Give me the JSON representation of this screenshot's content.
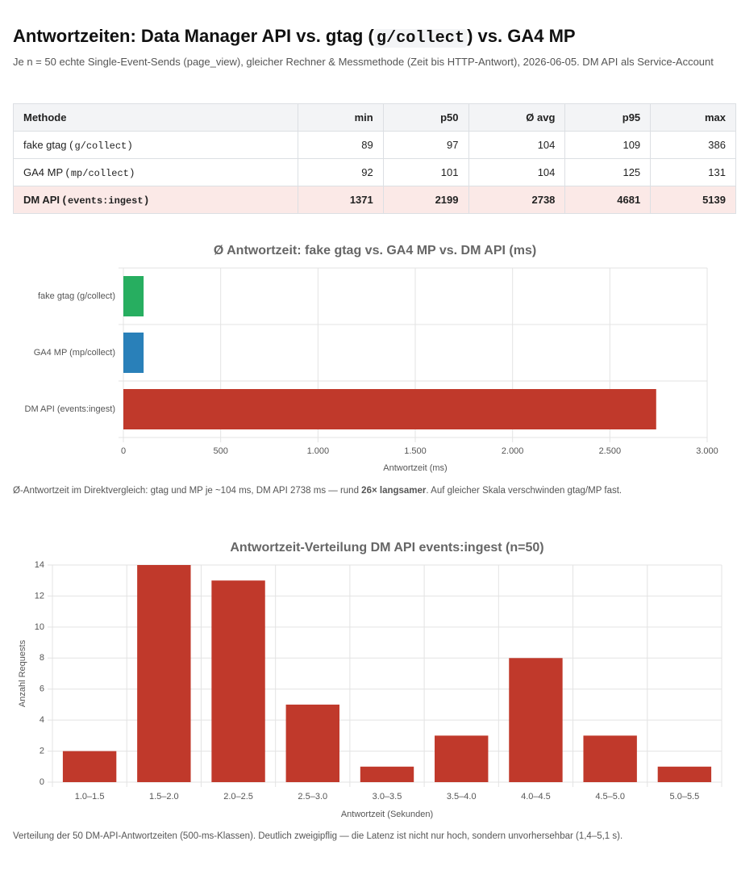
{
  "header": {
    "title": [
      "Antwortzeiten: Data Manager API vs. gtag (",
      "g/collect",
      ") vs. GA4 MP"
    ],
    "subtitle": "Je n = 50 echte Single-Event-Sends (page_view), gleicher Rechner & Messmethode (Zeit bis HTTP-Antwort), 2026-06-05. DM API als Service-Account"
  },
  "table": {
    "columns": [
      "Methode",
      "min",
      "p50",
      "Ø avg",
      "p95",
      "max"
    ],
    "rows": [
      {
        "method": [
          "fake gtag (",
          "g/collect",
          ")"
        ],
        "values": [
          89,
          97,
          104,
          109,
          386
        ]
      },
      {
        "method": [
          "GA4 MP (",
          "mp/collect",
          ")"
        ],
        "values": [
          92,
          101,
          104,
          125,
          131
        ]
      },
      {
        "method": [
          "DM API (",
          "events:ingest",
          ")"
        ],
        "values": [
          1371,
          2199,
          2738,
          4681,
          5139
        ],
        "highlight": true
      }
    ]
  },
  "chart_data": [
    {
      "type": "bar",
      "orientation": "horizontal",
      "title": "Ø Antwortzeit: fake gtag vs. GA4 MP vs. DM API (ms)",
      "categories": [
        "fake gtag (g/collect)",
        "GA4 MP (mp/collect)",
        "DM API (events:ingest)"
      ],
      "values": [
        104,
        104,
        2738
      ],
      "colors": [
        "#27ae60",
        "#2980b9",
        "#c0392b"
      ],
      "xlim": [
        0,
        3000
      ],
      "xticks": [
        0,
        500,
        {
          "value": 1000,
          "label": "1.000"
        },
        {
          "value": 1500,
          "label": "1.500"
        },
        {
          "value": 2000,
          "label": "2.000"
        },
        {
          "value": 2500,
          "label": "2.500"
        },
        {
          "value": 3000,
          "label": "3.000"
        }
      ],
      "xlabel": "Antwortzeit (ms)",
      "grid": true
    },
    {
      "type": "bar",
      "orientation": "vertical",
      "title": "Antwortzeit-Verteilung DM API events:ingest (n=50)",
      "categories": [
        "1.0–1.5",
        "1.5–2.0",
        "2.0–2.5",
        "2.5–3.0",
        "3.0–3.5",
        "3.5–4.0",
        "4.0–4.5",
        "4.5–5.0",
        "5.0–5.5"
      ],
      "values": [
        2,
        14,
        13,
        5,
        1,
        3,
        8,
        3,
        1
      ],
      "color": "#c0392b",
      "ylim": [
        0,
        14
      ],
      "yticks": [
        0,
        2,
        4,
        6,
        8,
        10,
        12,
        14
      ],
      "xlabel": "Antwortzeit (Sekunden)",
      "ylabel": "Anzahl Requests",
      "grid": true
    }
  ],
  "captions": [
    [
      "Ø-Antwortzeit im Direktvergleich: gtag und MP je ~104 ms, DM API 2738 ms — rund ",
      "26× langsamer",
      ". Auf gleicher Skala verschwinden gtag/MP fast."
    ],
    [
      "Verteilung der 50 DM-API-Antwortzeiten (500-ms-Klassen). Deutlich zweigipflig — die Latenz ist nicht nur hoch, sondern unvorhersehbar (1,4–5,1 s)."
    ]
  ]
}
